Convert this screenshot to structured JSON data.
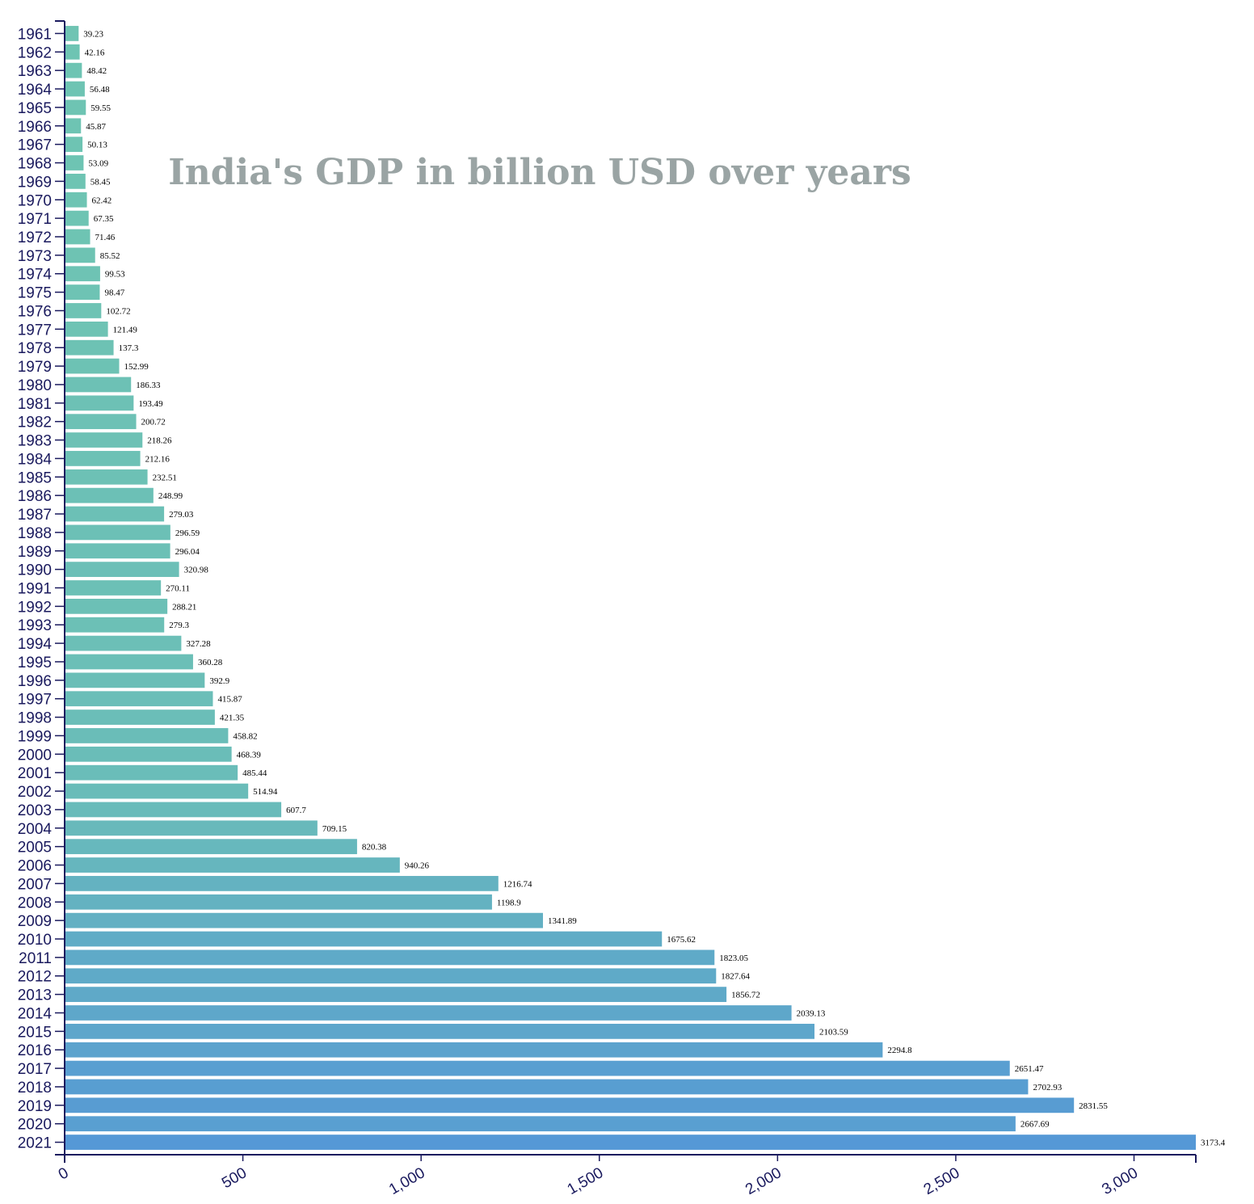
{
  "chart_data": {
    "type": "bar",
    "orientation": "horizontal",
    "title": "India's GDP in billion USD over years",
    "xlabel": "",
    "ylabel": "",
    "xlim": [
      0,
      3173.4
    ],
    "x_ticks": [
      "0",
      "500",
      "1,000",
      "1,500",
      "2,000",
      "2,500",
      "3,000"
    ],
    "x_tick_values": [
      0,
      500,
      1000,
      1500,
      2000,
      2500,
      3000
    ],
    "grid": false,
    "categories": [
      "1961",
      "1962",
      "1963",
      "1964",
      "1965",
      "1966",
      "1967",
      "1968",
      "1969",
      "1970",
      "1971",
      "1972",
      "1973",
      "1974",
      "1975",
      "1976",
      "1977",
      "1978",
      "1979",
      "1980",
      "1981",
      "1982",
      "1983",
      "1984",
      "1985",
      "1986",
      "1987",
      "1988",
      "1989",
      "1990",
      "1991",
      "1992",
      "1993",
      "1994",
      "1995",
      "1996",
      "1997",
      "1998",
      "1999",
      "2000",
      "2001",
      "2002",
      "2003",
      "2004",
      "2005",
      "2006",
      "2007",
      "2008",
      "2009",
      "2010",
      "2011",
      "2012",
      "2013",
      "2014",
      "2015",
      "2016",
      "2017",
      "2018",
      "2019",
      "2020",
      "2021"
    ],
    "values": [
      39.23,
      42.16,
      48.42,
      56.48,
      59.55,
      45.87,
      50.13,
      53.09,
      58.45,
      62.42,
      67.35,
      71.46,
      85.52,
      99.53,
      98.47,
      102.72,
      121.49,
      137.3,
      152.99,
      186.33,
      193.49,
      200.72,
      218.26,
      212.16,
      232.51,
      248.99,
      279.03,
      296.59,
      296.04,
      320.98,
      270.11,
      288.21,
      279.3,
      327.28,
      360.28,
      392.9,
      415.87,
      421.35,
      458.82,
      468.39,
      485.44,
      514.94,
      607.7,
      709.15,
      820.38,
      940.26,
      1216.74,
      1198.9,
      1341.89,
      1675.62,
      1823.05,
      1827.64,
      1856.72,
      2039.13,
      2103.59,
      2294.8,
      2651.47,
      2702.93,
      2831.55,
      2667.69,
      3173.4
    ],
    "value_labels": [
      "39.23",
      "42.16",
      "48.42",
      "56.48",
      "59.55",
      "45.87",
      "50.13",
      "53.09",
      "58.45",
      "62.42",
      "67.35",
      "71.46",
      "85.52",
      "99.53",
      "98.47",
      "102.72",
      "121.49",
      "137.3",
      "152.99",
      "186.33",
      "193.49",
      "200.72",
      "218.26",
      "212.16",
      "232.51",
      "248.99",
      "279.03",
      "296.59",
      "296.04",
      "320.98",
      "270.11",
      "288.21",
      "279.3",
      "327.28",
      "360.28",
      "392.9",
      "415.87",
      "421.35",
      "458.82",
      "468.39",
      "485.44",
      "514.94",
      "607.7",
      "709.15",
      "820.38",
      "940.26",
      "1216.74",
      "1198.9",
      "1341.89",
      "1675.62",
      "1823.05",
      "1827.64",
      "1856.72",
      "2039.13",
      "2103.59",
      "2294.8",
      "2651.47",
      "2702.93",
      "2831.55",
      "2667.69",
      "3173.4"
    ],
    "colors": {
      "bar_start": "#6fc5b2",
      "bar_end": "#5598d6",
      "axis": "#1a1a5e",
      "title": "#9aa4a4",
      "label": "#000000"
    }
  }
}
